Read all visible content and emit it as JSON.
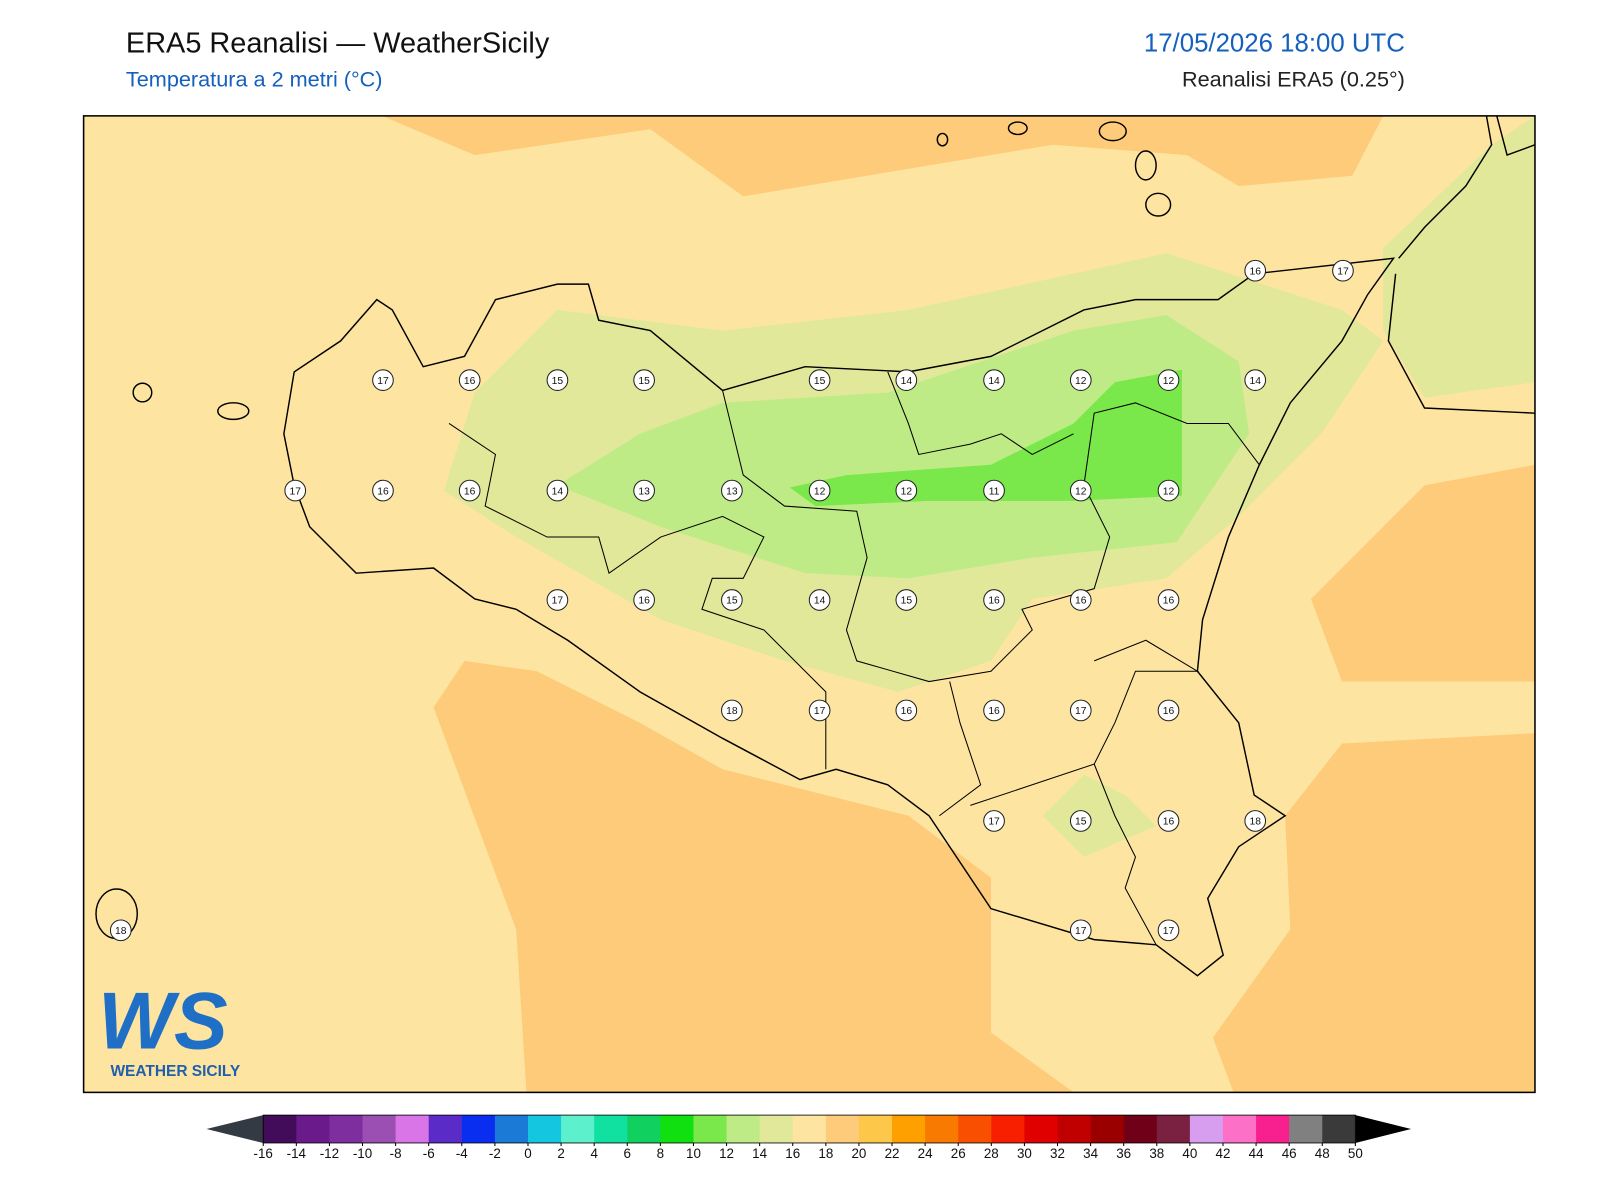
{
  "header": {
    "title": "ERA5 Reanalisi — WeatherSicily",
    "subtitle": "Temperatura a 2 metri (°C)",
    "datetime": "17/05/2026 18:00 UTC",
    "source": "Reanalisi ERA5 (0.25°)"
  },
  "map": {
    "stations": [
      17,
      16,
      15,
      15,
      15,
      14,
      14,
      12,
      12,
      14,
      16,
      17,
      17,
      16,
      16,
      14,
      13,
      13,
      12,
      12,
      11,
      12,
      12,
      17,
      16,
      15,
      14,
      15,
      16,
      16,
      16,
      18,
      17,
      16,
      16,
      17,
      16,
      17,
      15,
      16,
      18,
      17,
      17,
      18
    ]
  },
  "logo": {
    "mark": "WS",
    "text": "WEATHER SICILY"
  },
  "colorbar": {
    "ticks": [
      -16,
      -14,
      -12,
      -10,
      -8,
      -6,
      -4,
      -2,
      0,
      2,
      4,
      6,
      8,
      10,
      12,
      14,
      16,
      18,
      20,
      22,
      24,
      26,
      28,
      30,
      32,
      34,
      36,
      38,
      40,
      42,
      44,
      46,
      48,
      50
    ],
    "colors": [
      "#420c5a",
      "#6a1a8a",
      "#7e2e9e",
      "#9b4fb3",
      "#d975e6",
      "#5b2bc7",
      "#0a2ef0",
      "#1a7ad6",
      "#14c6e0",
      "#5cf0cc",
      "#10e0a0",
      "#10d060",
      "#10e010",
      "#7ae84a",
      "#bfeb86",
      "#e1e89a",
      "#fde5a1",
      "#fdcb79",
      "#fdc84a",
      "#fda000",
      "#f87a00",
      "#f85000",
      "#f81e00",
      "#e00000",
      "#c00000",
      "#9a0000",
      "#700018",
      "#7a2040",
      "#d79ef0",
      "#fc70c8",
      "#f8208e",
      "#808080",
      "#3a3a3a"
    ],
    "under_color": "#333a44",
    "over_color": "#000000"
  }
}
